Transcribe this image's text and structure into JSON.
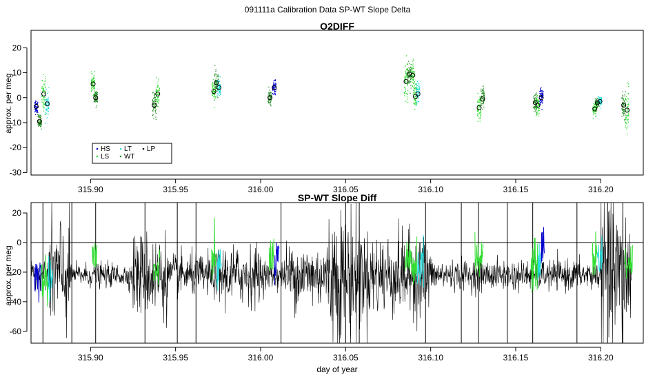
{
  "title": "091111a   Calibration Data SP-WT Slope Delta",
  "colors": {
    "HS": "#0000cc",
    "LS": "#33dd33",
    "LT": "#22dddd",
    "WT": "#228b22",
    "LP": "#000000",
    "line": "#000000"
  },
  "chart_data": [
    {
      "type": "scatter",
      "title": "O2DIFF",
      "xlabel": "",
      "ylabel": "approx. per meg",
      "xlim": [
        315.865,
        316.225
      ],
      "ylim": [
        -31,
        27
      ],
      "x_ticks": [
        315.9,
        315.95,
        316.0,
        316.05,
        316.1,
        316.15,
        316.2
      ],
      "x_tick_labels": [
        "315.90",
        "315.95",
        "316.00",
        "316.05",
        "316.10",
        "316.15",
        "316.20"
      ],
      "y_ticks": [
        -30,
        -20,
        -10,
        0,
        10,
        20
      ],
      "y_tick_labels": [
        "-30",
        "-20",
        "-10",
        "0",
        "10",
        "20"
      ],
      "legend": {
        "position": "bottom-left",
        "entries": [
          {
            "label": "HS",
            "series": "HS"
          },
          {
            "label": "LT",
            "series": "LT"
          },
          {
            "label": "LP",
            "series": "LP"
          },
          {
            "label": "LS",
            "series": "LS"
          },
          {
            "label": "WT",
            "series": "WT"
          }
        ]
      },
      "groups": [
        {
          "x": 315.873,
          "series": [
            {
              "name": "HS",
              "dx": -0.005,
              "mean": -3.5,
              "spread": 3
            },
            {
              "name": "WT",
              "dx": -0.003,
              "mean": -9.5,
              "spread": 3
            },
            {
              "name": "LS",
              "dx": -0.0005,
              "mean": 1.5,
              "spread": 8
            },
            {
              "name": "LT",
              "dx": 0.0015,
              "mean": -2.5,
              "spread": 5
            }
          ]
        },
        {
          "x": 315.902,
          "series": [
            {
              "name": "LS",
              "dx": -0.0005,
              "mean": 5.5,
              "spread": 4
            },
            {
              "name": "WT",
              "dx": 0.001,
              "mean": 0.0,
              "spread": 3
            }
          ]
        },
        {
          "x": 315.939,
          "series": [
            {
              "name": "WT",
              "dx": -0.0015,
              "mean": -3,
              "spread": 5
            },
            {
              "name": "LS",
              "dx": 0.0005,
              "mean": 1.5,
              "spread": 6
            }
          ]
        },
        {
          "x": 315.974,
          "series": [
            {
              "name": "LS",
              "dx": -0.0015,
              "mean": 2.5,
              "spread": 5
            },
            {
              "name": "WT",
              "dx": 0.0,
              "mean": 6.0,
              "spread": 5
            },
            {
              "name": "LT",
              "dx": 0.0015,
              "mean": 4.0,
              "spread": 4
            }
          ]
        },
        {
          "x": 316.007,
          "series": [
            {
              "name": "WT",
              "dx": -0.0015,
              "mean": 0.0,
              "spread": 3
            },
            {
              "name": "HS",
              "dx": 0.001,
              "mean": 4.0,
              "spread": 3
            }
          ]
        },
        {
          "x": 316.09,
          "series": [
            {
              "name": "LS",
              "dx": -0.0045,
              "mean": 6.5,
              "spread": 9
            },
            {
              "name": "WT",
              "dx": -0.0025,
              "mean": 9.5,
              "spread": 6
            },
            {
              "name": "LS",
              "dx": -0.0005,
              "mean": 9.0,
              "spread": 6
            },
            {
              "name": "LS",
              "dx": 0.001,
              "mean": 0.5,
              "spread": 6
            },
            {
              "name": "LT",
              "dx": 0.0025,
              "mean": 1.5,
              "spread": 5
            }
          ]
        },
        {
          "x": 316.13,
          "series": [
            {
              "name": "LS",
              "dx": -0.0015,
              "mean": -4.0,
              "spread": 6
            },
            {
              "name": "WT",
              "dx": 0.0005,
              "mean": -0.5,
              "spread": 5
            }
          ]
        },
        {
          "x": 316.163,
          "series": [
            {
              "name": "WT",
              "dx": -0.0015,
              "mean": -2.0,
              "spread": 4
            },
            {
              "name": "LS",
              "dx": 0.0,
              "mean": -3.0,
              "spread": 4
            },
            {
              "name": "HS",
              "dx": 0.002,
              "mean": 0.0,
              "spread": 4
            }
          ]
        },
        {
          "x": 316.198,
          "series": [
            {
              "name": "LS",
              "dx": -0.0015,
              "mean": -4.5,
              "spread": 3
            },
            {
              "name": "WT",
              "dx": 0.0,
              "mean": -2.0,
              "spread": 2
            },
            {
              "name": "LT",
              "dx": 0.0015,
              "mean": -1.5,
              "spread": 2
            }
          ]
        },
        {
          "x": 316.215,
          "series": [
            {
              "name": "WT",
              "dx": -0.0015,
              "mean": -3.0,
              "spread": 6
            },
            {
              "name": "LS",
              "dx": 0.0005,
              "mean": -5.0,
              "spread": 9
            }
          ]
        }
      ]
    },
    {
      "type": "line",
      "title": "SP-WT Slope Diff",
      "xlabel": "day of year",
      "ylabel": "approx. per meg",
      "xlim": [
        315.865,
        316.225
      ],
      "ylim": [
        -68,
        27
      ],
      "x_ticks": [
        315.9,
        315.95,
        316.0,
        316.05,
        316.1,
        316.15,
        316.2
      ],
      "x_tick_labels": [
        "315.90",
        "315.95",
        "316.00",
        "316.05",
        "316.10",
        "316.15",
        "316.20"
      ],
      "y_ticks": [
        -60,
        -40,
        -20,
        0,
        20
      ],
      "y_tick_labels": [
        "-60",
        "-40",
        "-20",
        "0",
        "20"
      ],
      "hline": 0,
      "baseline": -22,
      "noise_segments": [
        {
          "x": [
            315.865,
            315.875
          ],
          "amp": 8
        },
        {
          "x": [
            315.875,
            315.888
          ],
          "amp": 40
        },
        {
          "x": [
            315.888,
            315.925
          ],
          "amp": 8
        },
        {
          "x": [
            315.925,
            315.945
          ],
          "amp": 28
        },
        {
          "x": [
            315.945,
            315.975
          ],
          "amp": 14
        },
        {
          "x": [
            315.975,
            316.0
          ],
          "amp": 20
        },
        {
          "x": [
            316.0,
            316.015
          ],
          "amp": 10
        },
        {
          "x": [
            316.015,
            316.04
          ],
          "amp": 22
        },
        {
          "x": [
            316.04,
            316.06
          ],
          "amp": 45
        },
        {
          "x": [
            316.06,
            316.1
          ],
          "amp": 28
        },
        {
          "x": [
            316.1,
            316.2
          ],
          "amp": 10
        },
        {
          "x": [
            316.2,
            316.218
          ],
          "amp": 50
        }
      ],
      "spikes": [
        315.872,
        315.889,
        315.903,
        315.932,
        315.951,
        315.962,
        316.012,
        316.05,
        316.058,
        316.097,
        316.118,
        316.128,
        316.145,
        316.16,
        316.186,
        316.204,
        316.213
      ],
      "colored_overlays": [
        {
          "name": "HS",
          "x": [
            315.867,
            315.871
          ],
          "center": -22
        },
        {
          "name": "LS",
          "x": [
            315.871,
            315.875
          ],
          "center": -25
        },
        {
          "name": "LT",
          "x": [
            315.875,
            315.878
          ],
          "center": -23
        },
        {
          "name": "LS",
          "x": [
            315.901,
            315.904
          ],
          "center": -10
        },
        {
          "name": "LS",
          "x": [
            315.937,
            315.941
          ],
          "center": -20
        },
        {
          "name": "LS",
          "x": [
            315.971,
            315.974
          ],
          "center": -12
        },
        {
          "name": "LT",
          "x": [
            315.974,
            315.977
          ],
          "center": -18
        },
        {
          "name": "LS",
          "x": [
            316.005,
            316.008
          ],
          "center": -10
        },
        {
          "name": "HS",
          "x": [
            316.008,
            316.011
          ],
          "center": -14
        },
        {
          "name": "LS",
          "x": [
            316.085,
            316.092
          ],
          "center": -15
        },
        {
          "name": "LT",
          "x": [
            316.092,
            316.096
          ],
          "center": -14
        },
        {
          "name": "LS",
          "x": [
            316.126,
            316.131
          ],
          "center": -10
        },
        {
          "name": "LS",
          "x": [
            316.159,
            316.163
          ],
          "center": -16
        },
        {
          "name": "LT",
          "x": [
            316.163,
            316.165
          ],
          "center": -14
        },
        {
          "name": "HS",
          "x": [
            316.165,
            316.167
          ],
          "center": -2
        },
        {
          "name": "LS",
          "x": [
            316.195,
            316.198
          ],
          "center": -10
        },
        {
          "name": "LT",
          "x": [
            316.198,
            316.201
          ],
          "center": -8
        },
        {
          "name": "LS",
          "x": [
            316.214,
            316.219
          ],
          "center": -14
        }
      ]
    }
  ]
}
